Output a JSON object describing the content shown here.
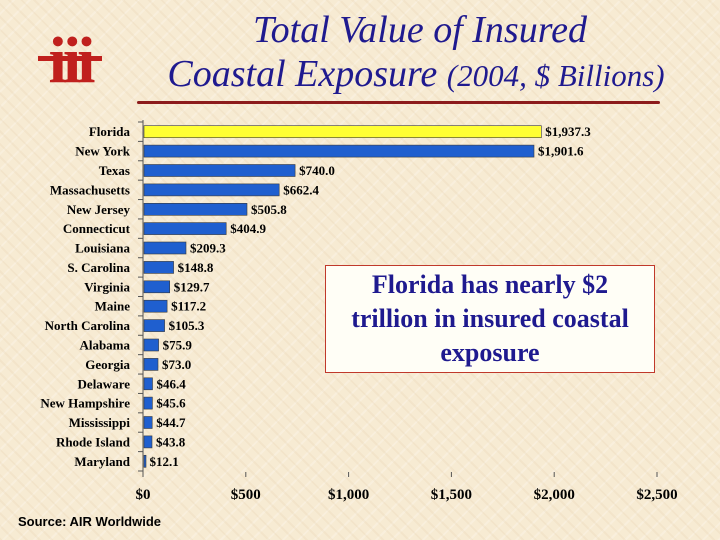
{
  "title": {
    "line1": "Total Value of Insured",
    "line2_main": "Coastal Exposure ",
    "line2_paren": "(2004, $ Billions)"
  },
  "logo": {
    "icon": "iii-logo",
    "text": "iii",
    "color": "#c0201d"
  },
  "callout": {
    "text": "Florida has nearly $2 trillion in insured coastal exposure"
  },
  "source": "Source: AIR Worldwide",
  "colors": {
    "highlight": "#ffff33",
    "bar": "#1f5fcf",
    "title": "#1f1a8f",
    "accent": "#8c1b1b"
  },
  "chart_data": {
    "type": "bar",
    "orientation": "horizontal",
    "title": "Total Value of Insured Coastal Exposure (2004, $ Billions)",
    "categories": [
      "Florida",
      "New York",
      "Texas",
      "Massachusetts",
      "New Jersey",
      "Connecticut",
      "Louisiana",
      "S. Carolina",
      "Virginia",
      "Maine",
      "North Carolina",
      "Alabama",
      "Georgia",
      "Delaware",
      "New Hampshire",
      "Mississippi",
      "Rhode Island",
      "Maryland"
    ],
    "values": [
      1937.3,
      1901.6,
      740.0,
      662.4,
      505.8,
      404.9,
      209.3,
      148.8,
      129.7,
      117.2,
      105.3,
      75.9,
      73.0,
      46.4,
      45.6,
      44.7,
      43.8,
      12.1
    ],
    "data_labels": [
      "$1,937.3",
      "$1,901.6",
      "$740.0",
      "$662.4",
      "$505.8",
      "$404.9",
      "$209.3",
      "$148.8",
      "$129.7",
      "$117.2",
      "$105.3",
      "$75.9",
      "$73.0",
      "$46.4",
      "$45.6",
      "$44.7",
      "$43.8",
      "$12.1"
    ],
    "highlight_category": "Florida",
    "xlim": [
      0,
      2500
    ],
    "xticks": [
      0,
      500,
      1000,
      1500,
      2000,
      2500
    ],
    "xtick_labels": [
      "$0",
      "$500",
      "$1,000",
      "$1,500",
      "$2,000",
      "$2,500"
    ],
    "grid": false,
    "legend": "none"
  }
}
